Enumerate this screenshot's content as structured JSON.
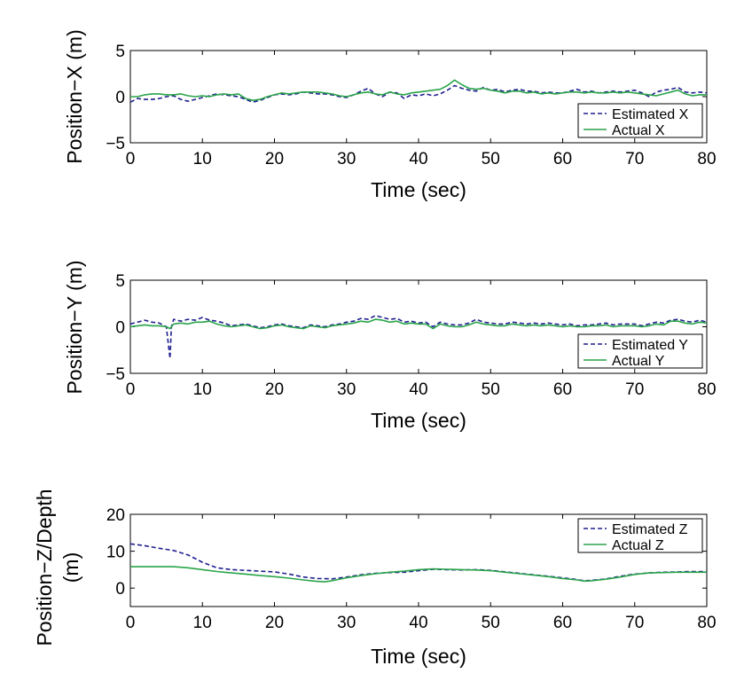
{
  "chart_data": [
    {
      "type": "line",
      "xlabel": "Time (sec)",
      "ylabel": "Position−X (m)",
      "xlim": [
        0,
        80
      ],
      "ylim": [
        -5,
        5
      ],
      "xticks": [
        "0",
        "10",
        "20",
        "30",
        "40",
        "50",
        "60",
        "70",
        "80"
      ],
      "yticks": [
        "−5",
        "0",
        "5"
      ],
      "legend_position": "bottom-right",
      "series": [
        {
          "name": "Estimated X",
          "color": "#1f1f8f",
          "style": "dashed",
          "x": [
            0,
            1,
            2,
            3,
            4,
            5,
            6,
            7,
            8,
            9,
            10,
            11,
            12,
            13,
            14,
            15,
            16,
            17,
            18,
            19,
            20,
            21,
            22,
            23,
            24,
            25,
            26,
            27,
            28,
            29,
            30,
            31,
            32,
            33,
            34,
            35,
            36,
            37,
            38,
            39,
            40,
            41,
            42,
            43,
            44,
            45,
            46,
            47,
            48,
            49,
            50,
            51,
            52,
            53,
            54,
            55,
            56,
            57,
            58,
            59,
            60,
            61,
            62,
            63,
            64,
            65,
            66,
            67,
            68,
            69,
            70,
            71,
            72,
            73,
            74,
            75,
            76,
            77,
            78,
            79,
            80
          ],
          "values": [
            -0.6,
            -0.2,
            -0.3,
            -0.3,
            -0.2,
            0.0,
            0.1,
            -0.3,
            -0.5,
            -0.3,
            -0.1,
            0.1,
            0.3,
            0.2,
            0.1,
            0.0,
            -0.3,
            -0.6,
            -0.4,
            -0.1,
            0.2,
            0.3,
            0.2,
            0.3,
            0.5,
            0.4,
            0.3,
            0.3,
            0.2,
            0.0,
            -0.1,
            0.2,
            0.6,
            0.9,
            0.3,
            0.0,
            0.5,
            0.4,
            -0.2,
            0.2,
            0.1,
            0.3,
            0.1,
            0.3,
            0.7,
            1.2,
            0.9,
            0.7,
            0.6,
            1.0,
            0.7,
            0.8,
            0.5,
            0.7,
            0.8,
            0.6,
            0.6,
            0.4,
            0.5,
            0.4,
            0.4,
            0.6,
            0.8,
            0.5,
            0.6,
            0.4,
            0.5,
            0.6,
            0.5,
            0.6,
            0.7,
            0.4,
            0.0,
            0.5,
            0.7,
            0.8,
            1.0,
            0.5,
            0.4,
            0.5,
            0.4
          ]
        },
        {
          "name": "Actual X",
          "color": "#2aa44a",
          "style": "solid",
          "x": [
            0,
            1,
            2,
            3,
            4,
            5,
            6,
            7,
            8,
            9,
            10,
            11,
            12,
            13,
            14,
            15,
            16,
            17,
            18,
            19,
            20,
            21,
            22,
            23,
            24,
            25,
            26,
            27,
            28,
            29,
            30,
            31,
            32,
            33,
            34,
            35,
            36,
            37,
            38,
            39,
            40,
            41,
            42,
            43,
            44,
            45,
            46,
            47,
            48,
            49,
            50,
            51,
            52,
            53,
            54,
            55,
            56,
            57,
            58,
            59,
            60,
            61,
            62,
            63,
            64,
            65,
            66,
            67,
            68,
            69,
            70,
            71,
            72,
            73,
            74,
            75,
            76,
            77,
            78,
            79,
            80
          ],
          "values": [
            0.0,
            0.0,
            0.2,
            0.3,
            0.3,
            0.2,
            0.2,
            0.3,
            0.1,
            0.0,
            0.1,
            0.0,
            0.2,
            0.3,
            0.2,
            0.3,
            -0.2,
            -0.4,
            -0.3,
            0.0,
            0.2,
            0.4,
            0.3,
            0.4,
            0.5,
            0.5,
            0.5,
            0.4,
            0.3,
            0.1,
            0.0,
            0.2,
            0.4,
            0.5,
            0.3,
            0.2,
            0.5,
            0.3,
            0.2,
            0.4,
            0.5,
            0.6,
            0.7,
            0.8,
            1.2,
            1.8,
            1.3,
            0.9,
            0.8,
            0.9,
            0.7,
            0.6,
            0.4,
            0.6,
            0.6,
            0.4,
            0.5,
            0.3,
            0.4,
            0.3,
            0.4,
            0.5,
            0.5,
            0.4,
            0.5,
            0.4,
            0.4,
            0.5,
            0.4,
            0.5,
            0.4,
            0.3,
            0.2,
            0.1,
            0.3,
            0.5,
            0.7,
            0.3,
            0.1,
            0.2,
            0.2
          ]
        }
      ]
    },
    {
      "type": "line",
      "xlabel": "Time (sec)",
      "ylabel": "Position−Y (m)",
      "xlim": [
        0,
        80
      ],
      "ylim": [
        -5,
        5
      ],
      "xticks": [
        "0",
        "10",
        "20",
        "30",
        "40",
        "50",
        "60",
        "70",
        "80"
      ],
      "yticks": [
        "−5",
        "0",
        "5"
      ],
      "legend_position": "bottom-right",
      "series": [
        {
          "name": "Estimated Y",
          "color": "#1f1f8f",
          "style": "dashed",
          "x": [
            0,
            1,
            2,
            3,
            4,
            5,
            5.5,
            5.7,
            6,
            7,
            8,
            9,
            10,
            11,
            12,
            13,
            14,
            15,
            16,
            17,
            18,
            19,
            20,
            21,
            22,
            23,
            24,
            25,
            26,
            27,
            28,
            29,
            30,
            31,
            32,
            33,
            34,
            35,
            36,
            37,
            38,
            39,
            40,
            41,
            42,
            43,
            44,
            45,
            46,
            47,
            48,
            49,
            50,
            51,
            52,
            53,
            54,
            55,
            56,
            57,
            58,
            59,
            60,
            61,
            62,
            63,
            64,
            65,
            66,
            67,
            68,
            69,
            70,
            71,
            72,
            73,
            74,
            75,
            76,
            77,
            78,
            79,
            80
          ],
          "values": [
            0.3,
            0.5,
            0.7,
            0.5,
            0.4,
            0.0,
            -3.4,
            0.0,
            0.8,
            0.6,
            0.8,
            0.7,
            1.0,
            0.7,
            0.6,
            0.4,
            0.1,
            0.2,
            0.3,
            0.1,
            -0.1,
            0.0,
            0.2,
            0.3,
            0.1,
            0.0,
            -0.1,
            0.2,
            0.1,
            0.0,
            0.2,
            0.3,
            0.5,
            0.6,
            0.9,
            0.8,
            1.2,
            1.0,
            0.8,
            0.9,
            0.5,
            0.6,
            0.4,
            0.5,
            0.0,
            0.5,
            0.3,
            0.2,
            0.2,
            0.4,
            0.8,
            0.5,
            0.4,
            0.3,
            0.3,
            0.5,
            0.4,
            0.3,
            0.4,
            0.3,
            0.4,
            0.3,
            0.2,
            0.3,
            0.1,
            0.2,
            0.2,
            0.3,
            0.4,
            0.2,
            0.3,
            0.3,
            0.3,
            0.1,
            0.3,
            0.5,
            0.4,
            0.7,
            0.8,
            0.6,
            0.5,
            0.7,
            0.5
          ]
        },
        {
          "name": "Actual Y",
          "color": "#2aa44a",
          "style": "solid",
          "x": [
            0,
            1,
            2,
            3,
            4,
            5,
            5.5,
            5.7,
            6,
            7,
            8,
            9,
            10,
            11,
            12,
            13,
            14,
            15,
            16,
            17,
            18,
            19,
            20,
            21,
            22,
            23,
            24,
            25,
            26,
            27,
            28,
            29,
            30,
            31,
            32,
            33,
            34,
            35,
            36,
            37,
            38,
            39,
            40,
            41,
            42,
            43,
            44,
            45,
            46,
            47,
            48,
            49,
            50,
            51,
            52,
            53,
            54,
            55,
            56,
            57,
            58,
            59,
            60,
            61,
            62,
            63,
            64,
            65,
            66,
            67,
            68,
            69,
            70,
            71,
            72,
            73,
            74,
            75,
            76,
            77,
            78,
            79,
            80
          ],
          "values": [
            0.0,
            0.1,
            0.2,
            0.1,
            0.1,
            0.0,
            -0.2,
            0.0,
            0.3,
            0.4,
            0.3,
            0.5,
            0.5,
            0.6,
            0.3,
            0.1,
            0.0,
            0.1,
            0.2,
            0.0,
            -0.2,
            -0.1,
            0.1,
            0.2,
            0.0,
            -0.1,
            -0.2,
            0.1,
            0.0,
            -0.1,
            0.1,
            0.2,
            0.3,
            0.4,
            0.6,
            0.5,
            0.8,
            0.7,
            0.5,
            0.6,
            0.3,
            0.4,
            0.3,
            0.3,
            -0.2,
            0.3,
            0.1,
            0.0,
            0.0,
            0.2,
            0.5,
            0.3,
            0.2,
            0.1,
            0.1,
            0.3,
            0.2,
            0.1,
            0.2,
            0.1,
            0.2,
            0.1,
            0.0,
            0.1,
            0.0,
            0.0,
            0.1,
            0.1,
            0.2,
            0.0,
            0.1,
            0.1,
            0.1,
            0.0,
            0.1,
            0.3,
            0.2,
            0.6,
            0.6,
            0.4,
            0.3,
            0.5,
            0.4
          ]
        }
      ]
    },
    {
      "type": "line",
      "xlabel": "Time (sec)",
      "ylabel": [
        "Position−Z/Depth",
        "(m)"
      ],
      "xlim": [
        0,
        80
      ],
      "ylim": [
        -5,
        20
      ],
      "xticks": [
        "0",
        "10",
        "20",
        "30",
        "40",
        "50",
        "60",
        "70",
        "80"
      ],
      "yticks": [
        "0",
        "10",
        "20"
      ],
      "legend_position": "top-right",
      "series": [
        {
          "name": "Estimated Z",
          "color": "#1f1f8f",
          "style": "dashed",
          "x": [
            0,
            2,
            4,
            6,
            8,
            10,
            12,
            14,
            16,
            18,
            20,
            22,
            24,
            26,
            28,
            30,
            32,
            34,
            36,
            38,
            40,
            42,
            44,
            46,
            48,
            50,
            52,
            54,
            56,
            58,
            60,
            62,
            63,
            64,
            66,
            68,
            70,
            72,
            74,
            76,
            78,
            80
          ],
          "values": [
            12,
            11.5,
            10.8,
            10.2,
            9.0,
            7.0,
            5.5,
            5.0,
            4.8,
            4.6,
            4.4,
            3.8,
            3.0,
            2.6,
            2.5,
            3.0,
            3.6,
            4.0,
            4.2,
            4.3,
            4.7,
            5.1,
            5.0,
            4.9,
            5.0,
            4.8,
            4.4,
            4.0,
            3.6,
            3.2,
            2.8,
            2.3,
            2.0,
            2.1,
            2.5,
            3.2,
            3.8,
            4.1,
            4.3,
            4.4,
            4.5,
            4.5
          ]
        },
        {
          "name": "Actual Z",
          "color": "#2aa44a",
          "style": "solid",
          "x": [
            0,
            2,
            4,
            6,
            8,
            10,
            12,
            14,
            16,
            18,
            20,
            22,
            24,
            26,
            27,
            28,
            30,
            32,
            34,
            36,
            38,
            40,
            42,
            44,
            46,
            48,
            50,
            52,
            54,
            56,
            58,
            60,
            62,
            63,
            64,
            66,
            68,
            70,
            72,
            74,
            76,
            78,
            80
          ],
          "values": [
            5.8,
            5.8,
            5.8,
            5.8,
            5.5,
            5.0,
            4.5,
            4.1,
            3.8,
            3.4,
            3.1,
            2.7,
            2.2,
            1.8,
            1.7,
            2.0,
            2.8,
            3.4,
            3.9,
            4.3,
            4.6,
            5.0,
            5.2,
            5.1,
            5.0,
            4.9,
            4.7,
            4.3,
            3.9,
            3.5,
            3.1,
            2.6,
            2.2,
            1.9,
            2.0,
            2.4,
            3.0,
            3.7,
            4.1,
            4.2,
            4.3,
            4.3,
            4.3
          ]
        }
      ]
    }
  ]
}
